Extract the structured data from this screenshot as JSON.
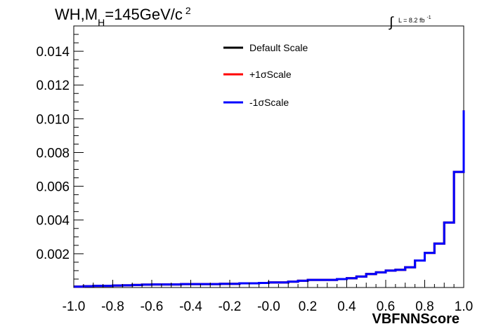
{
  "chart_data": {
    "type": "step-histogram",
    "title": {
      "main": "WH,M",
      "subscript": "H",
      "rest": "=145GeV/c",
      "superscript": "2"
    },
    "luminosity": {
      "integral_symbol": "∫",
      "text": "L = 8.2 fb",
      "superscript": "-1"
    },
    "xlabel": "VBFNNScore",
    "ylabel": "",
    "xlim": [
      -1.0,
      1.0
    ],
    "ylim": [
      0,
      0.0155
    ],
    "x_ticks": [
      "-1.0",
      "-0.8",
      "-0.6",
      "-0.4",
      "-0.2",
      "-0.0",
      "0.2",
      "0.4",
      "0.6",
      "0.8",
      "1.0"
    ],
    "x_tick_values": [
      -1.0,
      -0.8,
      -0.6,
      -0.4,
      -0.2,
      0.0,
      0.2,
      0.4,
      0.6,
      0.8,
      1.0
    ],
    "y_ticks": [
      "0.002",
      "0.004",
      "0.006",
      "0.008",
      "0.010",
      "0.012",
      "0.014"
    ],
    "y_tick_values": [
      0.002,
      0.004,
      0.006,
      0.008,
      0.01,
      0.012,
      0.014
    ],
    "bin_edges": [
      -1.0,
      -0.95,
      -0.9,
      -0.85,
      -0.8,
      -0.75,
      -0.7,
      -0.65,
      -0.6,
      -0.55,
      -0.5,
      -0.45,
      -0.4,
      -0.35,
      -0.3,
      -0.25,
      -0.2,
      -0.15,
      -0.1,
      -0.05,
      0.0,
      0.05,
      0.1,
      0.15,
      0.2,
      0.25,
      0.3,
      0.35,
      0.4,
      0.45,
      0.5,
      0.55,
      0.6,
      0.65,
      0.7,
      0.75,
      0.8,
      0.85,
      0.9,
      0.95,
      1.0
    ],
    "series": [
      {
        "name": "Default Scale",
        "color": "#000000",
        "values": [
          5e-05,
          8e-05,
          0.0001,
          0.0001,
          0.00012,
          0.00013,
          0.00015,
          0.00017,
          0.00018,
          0.00018,
          0.00018,
          0.0002,
          0.0002,
          0.0002,
          0.0002,
          0.00022,
          0.00022,
          0.00025,
          0.00025,
          0.00027,
          0.0003,
          0.0003,
          0.00035,
          0.0004,
          0.00045,
          0.00045,
          0.00045,
          0.0005,
          0.00055,
          0.00065,
          0.0008,
          0.0009,
          0.001,
          0.00105,
          0.0012,
          0.0016,
          0.00205,
          0.0026,
          0.00385,
          0.00685,
          0.0105
        ]
      },
      {
        "name": "+1σScale",
        "color": "#ff0000",
        "values": [
          5e-05,
          8e-05,
          0.0001,
          0.0001,
          0.00012,
          0.00013,
          0.00015,
          0.00017,
          0.00018,
          0.00018,
          0.00018,
          0.0002,
          0.0002,
          0.0002,
          0.0002,
          0.00022,
          0.00022,
          0.00025,
          0.00025,
          0.00027,
          0.0003,
          0.0003,
          0.00035,
          0.0004,
          0.00045,
          0.00045,
          0.00045,
          0.0005,
          0.00055,
          0.00065,
          0.0008,
          0.0009,
          0.001,
          0.00105,
          0.0012,
          0.0016,
          0.00205,
          0.0026,
          0.00385,
          0.00685,
          0.0105
        ]
      },
      {
        "name": "-1σScale",
        "color": "#0000ff",
        "values": [
          5e-05,
          8e-05,
          0.0001,
          0.0001,
          0.00012,
          0.00013,
          0.00015,
          0.00017,
          0.00018,
          0.00018,
          0.00018,
          0.0002,
          0.0002,
          0.0002,
          0.0002,
          0.00022,
          0.00022,
          0.00025,
          0.00025,
          0.00027,
          0.0003,
          0.0003,
          0.00035,
          0.0004,
          0.00045,
          0.00045,
          0.00045,
          0.0005,
          0.00055,
          0.00065,
          0.0008,
          0.0009,
          0.001,
          0.00105,
          0.0012,
          0.0016,
          0.00205,
          0.0026,
          0.00385,
          0.00685,
          0.0105
        ]
      }
    ],
    "legend_position": "top-center",
    "grid": false
  }
}
